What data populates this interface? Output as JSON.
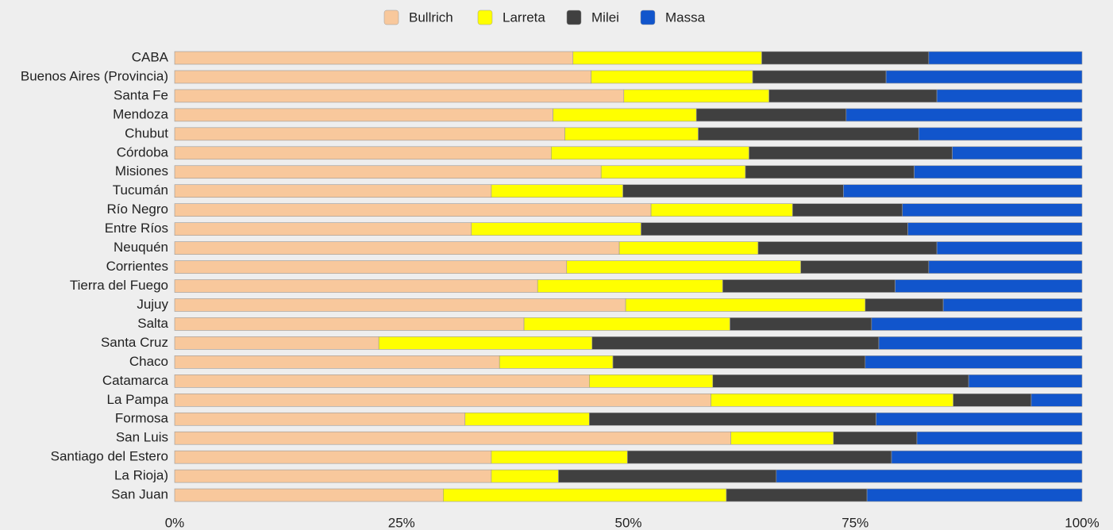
{
  "chart_data": {
    "type": "stacked-barh",
    "categories": [
      "CABA",
      "Buenos Aires (Provincia)",
      "Santa Fe",
      "Mendoza",
      "Chubut",
      "Córdoba",
      "Misiones",
      "Tucumán",
      "Río Negro",
      "Entre Ríos",
      "Neuquén",
      "Corrientes",
      "Tierra del Fuego",
      "Jujuy",
      "Salta",
      "Santa Cruz",
      "Chaco",
      "Catamarca",
      "La Pampa",
      "Formosa",
      "San Luis",
      "Santiago del Estero",
      "La Rioja)",
      "San Juan"
    ],
    "series": [
      {
        "name": "Bullrich",
        "color": "#f8c89c",
        "values": [
          43.9,
          45.9,
          49.5,
          41.7,
          43.0,
          41.5,
          47.0,
          34.9,
          52.5,
          32.7,
          49.0,
          43.2,
          40.0,
          49.7,
          38.5,
          22.5,
          35.8,
          45.7,
          59.1,
          32.0,
          61.3,
          34.9,
          34.9,
          29.6
        ]
      },
      {
        "name": "Larreta",
        "color": "#ffff00",
        "values": [
          20.8,
          17.8,
          16.0,
          15.8,
          14.7,
          21.8,
          15.9,
          14.5,
          15.6,
          18.7,
          15.3,
          25.8,
          20.4,
          26.4,
          22.7,
          23.5,
          12.5,
          13.6,
          26.7,
          13.7,
          11.3,
          15.0,
          7.4,
          31.2
        ]
      },
      {
        "name": "Milei",
        "color": "#404040",
        "values": [
          18.4,
          14.7,
          18.5,
          16.5,
          24.3,
          22.4,
          18.6,
          24.3,
          12.1,
          29.4,
          19.7,
          14.1,
          19.0,
          8.6,
          15.6,
          31.6,
          27.8,
          28.2,
          8.6,
          31.6,
          9.2,
          29.1,
          24.0,
          15.5
        ]
      },
      {
        "name": "Massa",
        "color": "#1155cc",
        "values": [
          16.9,
          21.6,
          16.0,
          26.0,
          18.0,
          14.3,
          18.5,
          26.3,
          19.8,
          19.2,
          16.0,
          16.9,
          20.6,
          15.3,
          23.2,
          22.4,
          23.9,
          12.5,
          5.6,
          22.7,
          18.2,
          21.0,
          33.7,
          23.7
        ]
      }
    ],
    "xlim": [
      0,
      100
    ],
    "xticks": [
      {
        "value": 0,
        "label": "0%"
      },
      {
        "value": 25,
        "label": "25%"
      },
      {
        "value": 50,
        "label": "50%"
      },
      {
        "value": 75,
        "label": "75%"
      },
      {
        "value": 100,
        "label": "100%"
      }
    ],
    "legend": "top"
  }
}
